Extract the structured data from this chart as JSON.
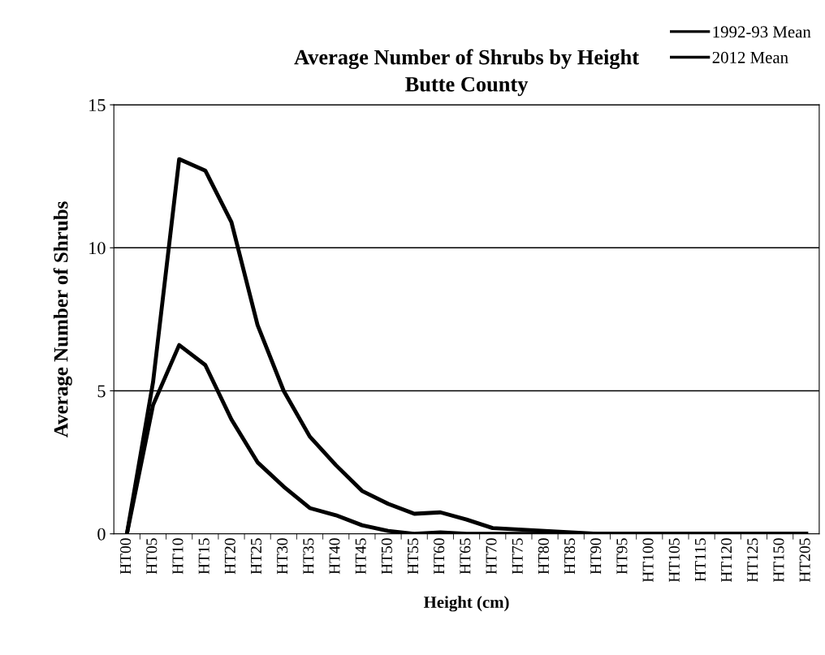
{
  "chart_data": {
    "type": "line",
    "title": "Average Number of Shrubs by Height\nButte County",
    "xlabel": "Height (cm)",
    "ylabel": "Average Number of Shrubs",
    "categories": [
      "HT00",
      "HT05",
      "HT10",
      "HT15",
      "HT20",
      "HT25",
      "HT30",
      "HT35",
      "HT40",
      "HT45",
      "HT50",
      "HT55",
      "HT60",
      "HT65",
      "HT70",
      "HT75",
      "HT80",
      "HT85",
      "HT90",
      "HT95",
      "HT100",
      "HT105",
      "HT115",
      "HT120",
      "HT125",
      "HT150",
      "HT205"
    ],
    "series": [
      {
        "name": "1992-93 Mean",
        "color": "#000000",
        "values": [
          0,
          5.3,
          13.1,
          12.7,
          10.9,
          7.3,
          5.0,
          3.4,
          2.4,
          1.5,
          1.05,
          0.7,
          0.75,
          0.5,
          0.2,
          0.15,
          0.1,
          0.05,
          0,
          0,
          0,
          0,
          0,
          0,
          0,
          0,
          0
        ]
      },
      {
        "name": "2012 Mean",
        "color": "#000000",
        "values": [
          0,
          4.5,
          6.6,
          5.9,
          4.0,
          2.5,
          1.65,
          0.9,
          0.65,
          0.3,
          0.1,
          0,
          0.05,
          0,
          0,
          0,
          0,
          0,
          0,
          0,
          0,
          0,
          0,
          0,
          0,
          0,
          0
        ]
      }
    ],
    "ylim": [
      0,
      15
    ],
    "yticks": [
      0,
      5,
      10,
      15
    ],
    "grid": "y",
    "legend": "top right",
    "marker": "none",
    "line_style": "solid"
  }
}
